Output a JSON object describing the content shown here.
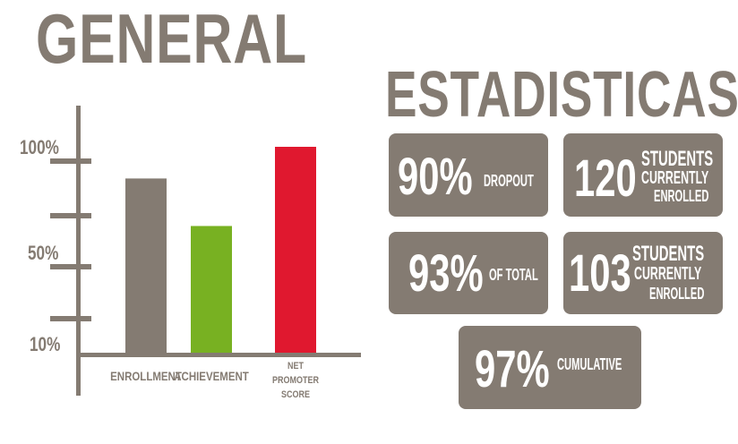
{
  "header": {
    "title": "GENERAL"
  },
  "stats": {
    "title": "ESTADISTICAS",
    "cards": [
      {
        "value": "90%",
        "label": [
          "DROPOUT"
        ]
      },
      {
        "value": "120",
        "label": [
          "STUDENTS",
          "CURRENTLY",
          "ENROLLED"
        ]
      },
      {
        "value": "93%",
        "label": [
          "OF TOTAL"
        ]
      },
      {
        "value": "103",
        "label": [
          "STUDENTS",
          "CURRENTLY",
          "ENROLLED"
        ]
      },
      {
        "value": "97%",
        "label": [
          "CUMULATIVE"
        ]
      }
    ]
  },
  "chart_data": {
    "type": "bar",
    "title": "",
    "xlabel": "",
    "ylabel": "",
    "categories": [
      "ENROLLMENT",
      "ACHIEVEMENT",
      "NET PROMOTER SCORE"
    ],
    "values": [
      88,
      64,
      104
    ],
    "colors": [
      "#847b72",
      "#78b122",
      "#e0182f"
    ],
    "ytick_labels": [
      "100%",
      "50%",
      "10%"
    ],
    "ylim": [
      0,
      110
    ],
    "grid": false
  },
  "colors": {
    "brand": "#847b72",
    "green": "#78b122",
    "red": "#e0182f",
    "card_text": "#ffffff"
  }
}
